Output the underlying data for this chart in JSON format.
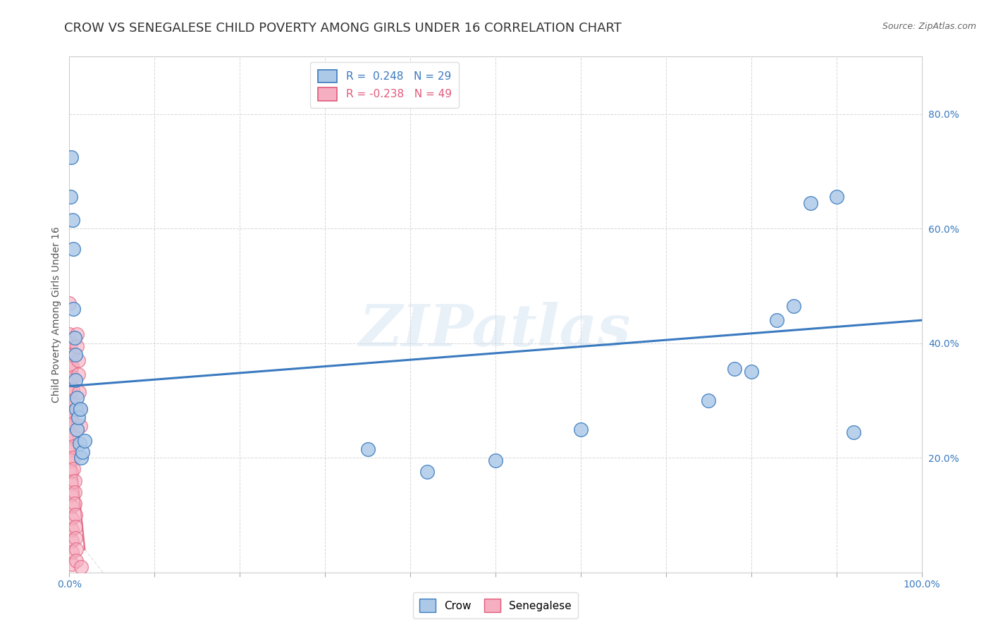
{
  "title": "CROW VS SENEGALESE CHILD POVERTY AMONG GIRLS UNDER 16 CORRELATION CHART",
  "source": "Source: ZipAtlas.com",
  "ylabel": "Child Poverty Among Girls Under 16",
  "watermark": "ZIPatlas",
  "crow_R": 0.248,
  "crow_N": 29,
  "senegalese_R": -0.238,
  "senegalese_N": 49,
  "crow_color": "#adc9e8",
  "senegalese_color": "#f5afc0",
  "crow_line_color": "#3a7abf",
  "senegalese_line_color": "#e05a7a",
  "crow_points": [
    [
      0.001,
      0.655
    ],
    [
      0.002,
      0.725
    ],
    [
      0.004,
      0.615
    ],
    [
      0.005,
      0.565
    ],
    [
      0.005,
      0.46
    ],
    [
      0.006,
      0.41
    ],
    [
      0.007,
      0.38
    ],
    [
      0.007,
      0.335
    ],
    [
      0.008,
      0.285
    ],
    [
      0.009,
      0.25
    ],
    [
      0.009,
      0.305
    ],
    [
      0.01,
      0.27
    ],
    [
      0.012,
      0.225
    ],
    [
      0.013,
      0.285
    ],
    [
      0.014,
      0.2
    ],
    [
      0.015,
      0.21
    ],
    [
      0.018,
      0.23
    ],
    [
      0.35,
      0.215
    ],
    [
      0.42,
      0.175
    ],
    [
      0.5,
      0.195
    ],
    [
      0.6,
      0.25
    ],
    [
      0.75,
      0.3
    ],
    [
      0.78,
      0.355
    ],
    [
      0.8,
      0.35
    ],
    [
      0.83,
      0.44
    ],
    [
      0.85,
      0.465
    ],
    [
      0.87,
      0.645
    ],
    [
      0.9,
      0.655
    ],
    [
      0.92,
      0.245
    ]
  ],
  "senegalese_points": [
    [
      0.0,
      0.47
    ],
    [
      0.0,
      0.415
    ],
    [
      0.001,
      0.4
    ],
    [
      0.001,
      0.38
    ],
    [
      0.001,
      0.355
    ],
    [
      0.001,
      0.335
    ],
    [
      0.001,
      0.315
    ],
    [
      0.001,
      0.295
    ],
    [
      0.002,
      0.275
    ],
    [
      0.002,
      0.255
    ],
    [
      0.002,
      0.235
    ],
    [
      0.002,
      0.215
    ],
    [
      0.002,
      0.195
    ],
    [
      0.002,
      0.175
    ],
    [
      0.002,
      0.155
    ],
    [
      0.002,
      0.135
    ],
    [
      0.003,
      0.115
    ],
    [
      0.003,
      0.095
    ],
    [
      0.003,
      0.075
    ],
    [
      0.003,
      0.055
    ],
    [
      0.003,
      0.035
    ],
    [
      0.003,
      0.015
    ],
    [
      0.003,
      0.38
    ],
    [
      0.003,
      0.36
    ],
    [
      0.004,
      0.34
    ],
    [
      0.004,
      0.32
    ],
    [
      0.004,
      0.3
    ],
    [
      0.004,
      0.28
    ],
    [
      0.005,
      0.26
    ],
    [
      0.005,
      0.24
    ],
    [
      0.005,
      0.22
    ],
    [
      0.005,
      0.2
    ],
    [
      0.005,
      0.18
    ],
    [
      0.006,
      0.16
    ],
    [
      0.006,
      0.14
    ],
    [
      0.006,
      0.12
    ],
    [
      0.007,
      0.1
    ],
    [
      0.007,
      0.08
    ],
    [
      0.007,
      0.06
    ],
    [
      0.008,
      0.04
    ],
    [
      0.008,
      0.02
    ],
    [
      0.009,
      0.415
    ],
    [
      0.009,
      0.395
    ],
    [
      0.01,
      0.37
    ],
    [
      0.01,
      0.345
    ],
    [
      0.011,
      0.315
    ],
    [
      0.012,
      0.285
    ],
    [
      0.013,
      0.255
    ],
    [
      0.014,
      0.01
    ]
  ],
  "xlim": [
    0.0,
    1.0
  ],
  "ylim": [
    0.0,
    0.9
  ],
  "xticks": [
    0.0,
    0.1,
    0.2,
    0.3,
    0.4,
    0.5,
    0.6,
    0.7,
    0.8,
    0.9,
    1.0
  ],
  "yticks": [
    0.0,
    0.2,
    0.4,
    0.6,
    0.8
  ],
  "ytick_labels": [
    "",
    "20.0%",
    "40.0%",
    "60.0%",
    "80.0%"
  ],
  "background_color": "#ffffff",
  "grid_color": "#cccccc",
  "title_fontsize": 13,
  "axis_fontsize": 10,
  "tick_fontsize": 10,
  "legend_fontsize": 11
}
